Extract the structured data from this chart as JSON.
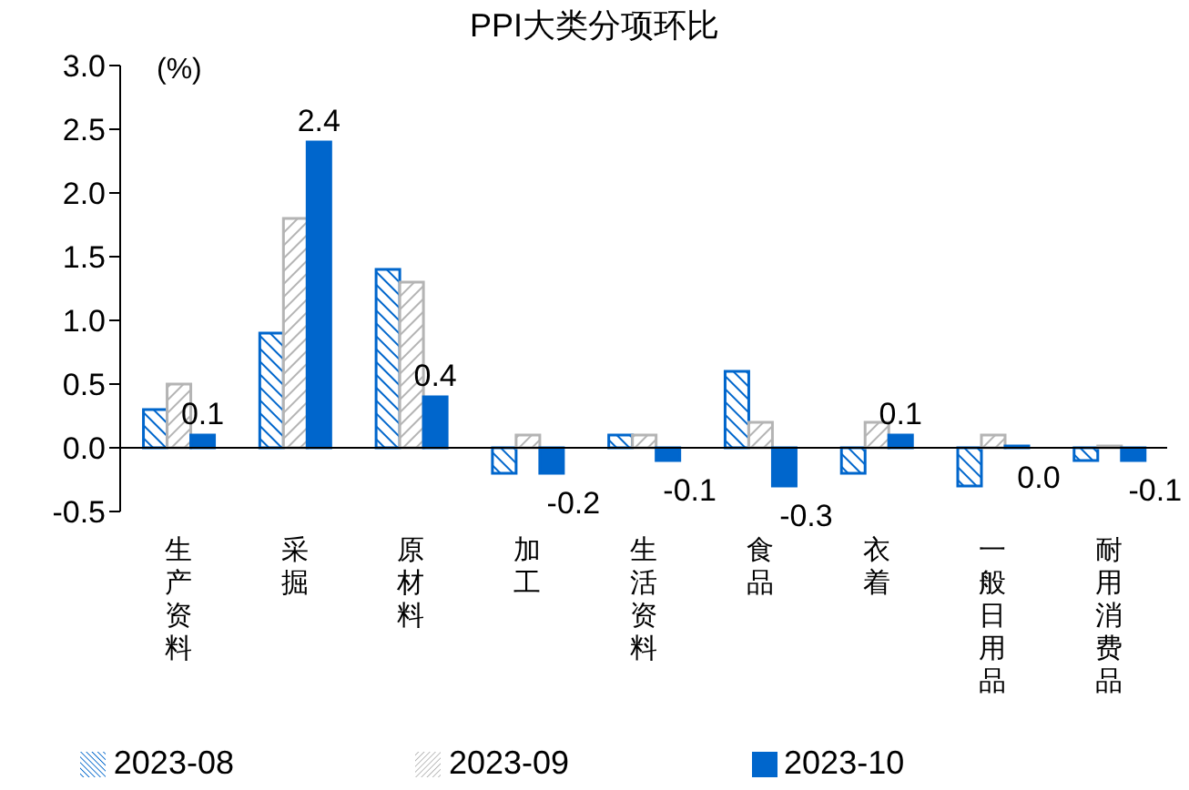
{
  "chart_data": {
    "type": "bar",
    "title": "PPI大类分项环比",
    "ylabel": "(%)",
    "categories": [
      "生产资料",
      "采掘",
      "原材料",
      "加工",
      "生活资料",
      "食品",
      "衣着",
      "一般日用品",
      "耐用消费品"
    ],
    "series": [
      {
        "name": "2023-08",
        "color": "#0066cc",
        "values": [
          0.3,
          0.9,
          1.4,
          -0.2,
          0.1,
          0.6,
          -0.2,
          -0.3,
          -0.1
        ]
      },
      {
        "name": "2023-09",
        "color": "#b4b4b4",
        "values": [
          0.5,
          1.8,
          1.3,
          0.1,
          0.1,
          0.2,
          0.2,
          0.1,
          0.0
        ]
      },
      {
        "name": "2023-10",
        "color": "#0066cc",
        "values": [
          0.1,
          2.4,
          0.4,
          -0.2,
          -0.1,
          -0.3,
          0.1,
          0.0,
          -0.1
        ],
        "value_labels": [
          "0.1",
          "2.4",
          "0.4",
          "-0.2",
          "-0.1",
          "-0.3",
          "0.1",
          "0.0",
          "-0.1"
        ]
      }
    ],
    "ylim": [
      -0.5,
      3.0
    ],
    "yticks": [
      {
        "value": -0.5,
        "label": "-0.5"
      },
      {
        "value": 0,
        "label": "0.0"
      },
      {
        "value": 0.5,
        "label": "0.5"
      },
      {
        "value": 1,
        "label": "1.0"
      },
      {
        "value": 1.5,
        "label": "1.5"
      },
      {
        "value": 2,
        "label": "2.0"
      },
      {
        "value": 2.5,
        "label": "2.5"
      },
      {
        "value": 3,
        "label": "3.0"
      }
    ],
    "ref_lines": [
      {
        "axis": "y",
        "value": 0,
        "color": "#000000"
      }
    ],
    "grid": false,
    "legend": "bottom"
  }
}
